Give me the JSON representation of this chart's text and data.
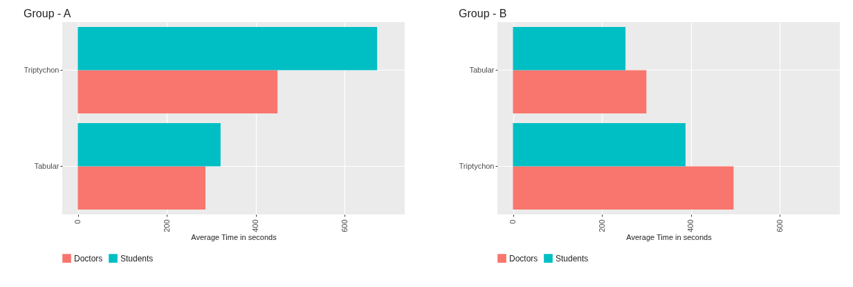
{
  "chart_data": [
    {
      "type": "bar",
      "title": "Group - A",
      "orientation": "horizontal",
      "categories": [
        "Triptychon",
        "Tabular"
      ],
      "xlabel": "Average Time in seconds",
      "xlim": [
        -35,
        735
      ],
      "xticks": [
        0,
        200,
        400,
        600
      ],
      "grid": true,
      "legend": "bottom",
      "series": [
        {
          "name": "Doctors",
          "color": "#f8766d",
          "values": [
            449,
            287
          ]
        },
        {
          "name": "Students",
          "color": "#00bfc4",
          "values": [
            673,
            321
          ]
        }
      ]
    },
    {
      "type": "bar",
      "title": "Group - B",
      "orientation": "horizontal",
      "categories": [
        "Tabular",
        "Triptychon"
      ],
      "xlabel": "Average Time in seconds",
      "xlim": [
        -35,
        735
      ],
      "xticks": [
        0,
        200,
        400,
        600
      ],
      "grid": true,
      "legend": "bottom",
      "series": [
        {
          "name": "Doctors",
          "color": "#f8766d",
          "values": [
            300,
            496
          ]
        },
        {
          "name": "Students",
          "color": "#00bfc4",
          "values": [
            253,
            388
          ]
        }
      ]
    }
  ]
}
